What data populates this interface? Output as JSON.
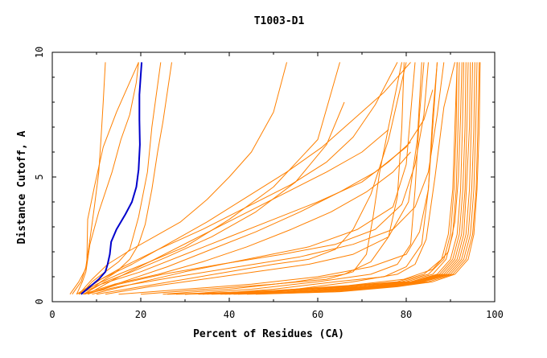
{
  "chart_data": {
    "type": "line",
    "title": "T1003-D1",
    "xlabel": "Percent of Residues (CA)",
    "ylabel": "Distance Cutoff, A",
    "xlim": [
      0,
      100
    ],
    "ylim": [
      0,
      10
    ],
    "xticks": [
      0,
      20,
      40,
      60,
      80,
      100
    ],
    "yticks": [
      0,
      5,
      10
    ],
    "colors": {
      "models": "#ff8000",
      "highlight": "#0000cc",
      "axis": "#000000"
    },
    "highlight": {
      "x": [
        6.5,
        8.5,
        10.5,
        12.0,
        12.5,
        13.0,
        13.3,
        14.5,
        16.5,
        18.0,
        19.0,
        19.5,
        19.8,
        19.7,
        19.7,
        20.0,
        20.2
      ],
      "y": [
        0.3,
        0.6,
        0.9,
        1.2,
        1.5,
        1.9,
        2.4,
        2.9,
        3.5,
        4.0,
        4.6,
        5.3,
        6.3,
        7.3,
        8.3,
        9.1,
        9.6
      ]
    },
    "series": [
      {
        "x": [
          4.0,
          6.0,
          7.5,
          8.5,
          9.5,
          10.5,
          11.0,
          11.5,
          12.0
        ],
        "y": [
          0.3,
          0.8,
          1.3,
          2.5,
          3.8,
          5.2,
          6.5,
          8.0,
          9.6
        ]
      },
      {
        "x": [
          4.5,
          6.5,
          7.8,
          8.0,
          9.5,
          11.5,
          14.5,
          17.0,
          19.5
        ],
        "y": [
          0.3,
          0.8,
          1.5,
          3.3,
          4.6,
          6.2,
          7.6,
          8.6,
          9.6
        ]
      },
      {
        "x": [
          5.5,
          6.8,
          7.6,
          8.5,
          10.5,
          13.5,
          15.5,
          17.5,
          19.0,
          19.5
        ],
        "y": [
          0.3,
          0.8,
          1.2,
          2.3,
          3.6,
          5.2,
          6.5,
          7.5,
          8.8,
          9.6
        ]
      },
      {
        "x": [
          6.5,
          9.0,
          12.0,
          15.0,
          17.5,
          19.5,
          21.5,
          22.5,
          24.5
        ],
        "y": [
          0.3,
          0.8,
          1.2,
          1.6,
          2.1,
          3.4,
          5.2,
          7.0,
          9.6
        ]
      },
      {
        "x": [
          7.5,
          11.0,
          14.5,
          17.5,
          19.5,
          21.0,
          22.5,
          23.8,
          25.0,
          26.0,
          27.0
        ],
        "y": [
          0.3,
          0.8,
          1.2,
          1.7,
          2.3,
          3.1,
          4.5,
          6.0,
          7.2,
          8.4,
          9.6
        ]
      },
      {
        "x": [
          6.0,
          9.0,
          12.5,
          17.0,
          23.0,
          29.0,
          35.0,
          40.0,
          45.0,
          50.0,
          53.0
        ],
        "y": [
          0.3,
          0.9,
          1.5,
          2.0,
          2.6,
          3.2,
          4.1,
          5.0,
          6.0,
          7.6,
          9.6
        ]
      },
      {
        "x": [
          6.0,
          10.0,
          15.0,
          22.0,
          30.0,
          40.0,
          50.0,
          60.0,
          65.0
        ],
        "y": [
          0.3,
          0.7,
          1.1,
          1.6,
          2.2,
          3.3,
          4.6,
          6.5,
          9.6
        ]
      },
      {
        "x": [
          7.0,
          12.0,
          18.0,
          26.0,
          36.0,
          46.0,
          55.0,
          62.0,
          66.0
        ],
        "y": [
          0.3,
          0.8,
          1.2,
          1.8,
          2.6,
          3.6,
          4.8,
          6.3,
          8.0
        ]
      },
      {
        "x": [
          5.5,
          10.0,
          16.0,
          24.0,
          34.0,
          44.0,
          54.0,
          62.0,
          68.0,
          73.0,
          78.0
        ],
        "y": [
          0.3,
          0.8,
          1.4,
          2.1,
          2.9,
          3.8,
          4.7,
          5.6,
          6.6,
          7.9,
          9.6
        ]
      },
      {
        "x": [
          6.0,
          11.0,
          18.0,
          26.0,
          35.0,
          44.0,
          53.0,
          61.0,
          68.0,
          75.0,
          81.0
        ],
        "y": [
          0.3,
          0.9,
          1.5,
          2.3,
          3.2,
          4.2,
          5.2,
          6.2,
          7.3,
          8.4,
          9.6
        ]
      },
      {
        "x": [
          8.0,
          14.0,
          22.0,
          32.0,
          42.0,
          52.0,
          62.0,
          70.0,
          76.0
        ],
        "y": [
          0.3,
          0.9,
          1.6,
          2.5,
          3.4,
          4.3,
          5.2,
          6.0,
          6.9
        ]
      },
      {
        "x": [
          6.0,
          11.0,
          20.0,
          30.0,
          40.0,
          50.0,
          60.0,
          70.0,
          76.0,
          81.0
        ],
        "y": [
          0.3,
          0.7,
          1.2,
          1.9,
          2.6,
          3.3,
          4.0,
          4.8,
          5.6,
          6.4
        ]
      },
      {
        "x": [
          7.0,
          14.0,
          24.0,
          34.0,
          44.0,
          54.0,
          63.0,
          71.0,
          77.0,
          81.0
        ],
        "y": [
          0.3,
          0.7,
          1.1,
          1.6,
          2.2,
          2.9,
          3.6,
          4.4,
          5.2,
          6.0
        ]
      },
      {
        "x": [
          8.0,
          16.0,
          26.0,
          36.0,
          46.0,
          56.0,
          65.0,
          73.0,
          80.0,
          84.0,
          86.0
        ],
        "y": [
          0.3,
          0.8,
          1.4,
          2.1,
          2.8,
          3.6,
          4.4,
          5.2,
          6.2,
          7.3,
          8.5
        ]
      },
      {
        "x": [
          10.0,
          20.0,
          30.0,
          40.0,
          50.0,
          58.0,
          64.0,
          68.0,
          72.0,
          76.0,
          80.0
        ],
        "y": [
          0.3,
          0.6,
          0.9,
          1.2,
          1.5,
          1.7,
          2.1,
          2.9,
          4.3,
          6.5,
          9.6
        ]
      },
      {
        "x": [
          20.0,
          35.0,
          50.0,
          62.0,
          68.0,
          71.0,
          72.5,
          74.0,
          76.0,
          79.0
        ],
        "y": [
          0.3,
          0.5,
          0.7,
          0.9,
          1.2,
          1.9,
          3.4,
          5.2,
          7.0,
          9.6
        ]
      },
      {
        "x": [
          25.0,
          40.0,
          55.0,
          66.0,
          72.0,
          76.0,
          78.0,
          79.0,
          79.5
        ],
        "y": [
          0.3,
          0.5,
          0.8,
          1.1,
          1.6,
          2.6,
          4.2,
          7.0,
          9.6
        ]
      },
      {
        "x": [
          30.0,
          45.0,
          60.0,
          72.0,
          78.0,
          81.0,
          82.0,
          83.0,
          84.0
        ],
        "y": [
          0.3,
          0.5,
          0.8,
          1.1,
          1.5,
          2.3,
          4.5,
          7.5,
          9.6
        ]
      },
      {
        "x": [
          35.0,
          50.0,
          64.0,
          75.0,
          80.0,
          83.5,
          85.0,
          86.0,
          87.0
        ],
        "y": [
          0.3,
          0.5,
          0.8,
          1.0,
          1.4,
          2.3,
          4.5,
          7.5,
          9.6
        ]
      },
      {
        "x": [
          40.0,
          55.0,
          68.0,
          78.0,
          82.0,
          84.5,
          86.5,
          88.5,
          91.0
        ],
        "y": [
          0.3,
          0.5,
          0.8,
          1.1,
          1.5,
          2.5,
          5.0,
          7.8,
          9.6
        ]
      },
      {
        "x": [
          8.0,
          15.0,
          25.0,
          38.0,
          52.0,
          64.0,
          73.0,
          79.0,
          82.0,
          84.0,
          85.0
        ],
        "y": [
          0.3,
          0.7,
          1.1,
          1.5,
          1.9,
          2.3,
          2.9,
          3.9,
          5.5,
          7.5,
          9.6
        ]
      },
      {
        "x": [
          12.0,
          22.0,
          34.0,
          46.0,
          58.0,
          68.0,
          76.0,
          80.5,
          82.5,
          83.5
        ],
        "y": [
          0.3,
          0.6,
          0.9,
          1.2,
          1.5,
          1.9,
          2.6,
          4.0,
          6.5,
          9.6
        ]
      },
      {
        "x": [
          7.0,
          15.0,
          28.0,
          42.0,
          56.0,
          68.0,
          77.0,
          82.0,
          85.0,
          87.0,
          88.5
        ],
        "y": [
          0.3,
          0.6,
          1.0,
          1.4,
          1.8,
          2.3,
          2.9,
          3.8,
          5.2,
          7.5,
          9.6
        ]
      },
      {
        "x": [
          9.0,
          18.0,
          30.0,
          44.0,
          58.0,
          69.0,
          77.0,
          80.0,
          82.0
        ],
        "y": [
          0.3,
          0.7,
          1.2,
          1.7,
          2.2,
          2.9,
          3.8,
          5.5,
          9.6
        ]
      },
      {
        "x": [
          15.0,
          30.0,
          45.0,
          60.0,
          72.0,
          80.0,
          83.0,
          85.0,
          86.0,
          87.0
        ],
        "y": [
          0.3,
          0.5,
          0.7,
          1.0,
          1.4,
          1.9,
          2.8,
          4.5,
          7.0,
          9.6
        ]
      },
      {
        "x": [
          30.0,
          50.0,
          68.0,
          80.0,
          86.0,
          89.0,
          90.5,
          91.3,
          91.7,
          92.0
        ],
        "y": [
          0.3,
          0.4,
          0.6,
          0.8,
          1.1,
          1.7,
          2.7,
          4.5,
          7.0,
          9.6
        ]
      },
      {
        "x": [
          33.0,
          53.0,
          70.0,
          81.0,
          87.0,
          90.0,
          91.5,
          92.3,
          92.7,
          93.0
        ],
        "y": [
          0.3,
          0.4,
          0.6,
          0.8,
          1.1,
          1.7,
          2.7,
          4.5,
          7.0,
          9.6
        ]
      },
      {
        "x": [
          36.0,
          56.0,
          72.0,
          82.0,
          88.0,
          91.0,
          92.5,
          93.3,
          93.7,
          94.0
        ],
        "y": [
          0.3,
          0.4,
          0.6,
          0.8,
          1.1,
          1.7,
          2.7,
          4.5,
          7.0,
          9.6
        ]
      },
      {
        "x": [
          39.0,
          59.0,
          74.0,
          83.0,
          89.0,
          92.0,
          93.5,
          94.3,
          94.7,
          95.0
        ],
        "y": [
          0.3,
          0.4,
          0.6,
          0.8,
          1.1,
          1.7,
          2.7,
          4.5,
          7.0,
          9.6
        ]
      },
      {
        "x": [
          42.0,
          62.0,
          76.0,
          84.0,
          90.0,
          93.0,
          94.5,
          95.3,
          95.7,
          96.0
        ],
        "y": [
          0.3,
          0.4,
          0.6,
          0.8,
          1.1,
          1.7,
          2.7,
          4.5,
          7.0,
          9.6
        ]
      },
      {
        "x": [
          44.0,
          64.0,
          77.0,
          85.0,
          90.5,
          93.5,
          95.0,
          95.8,
          96.2,
          96.5
        ],
        "y": [
          0.3,
          0.4,
          0.6,
          0.8,
          1.1,
          1.7,
          2.7,
          4.5,
          7.0,
          9.6
        ]
      },
      {
        "x": [
          28.0,
          48.0,
          66.0,
          79.0,
          85.0,
          88.5,
          90.0,
          90.8,
          91.3,
          91.5
        ],
        "y": [
          0.3,
          0.4,
          0.6,
          0.8,
          1.1,
          1.7,
          2.7,
          4.5,
          7.0,
          9.6
        ]
      },
      {
        "x": [
          38.0,
          57.0,
          73.0,
          82.5,
          88.5,
          91.5,
          93.0,
          93.6,
          94.3,
          94.5
        ],
        "y": [
          0.3,
          0.4,
          0.6,
          0.8,
          1.1,
          1.7,
          2.7,
          4.5,
          7.0,
          9.6
        ]
      },
      {
        "x": [
          46.0,
          65.0,
          78.0,
          86.0,
          91.0,
          94.0,
          95.3,
          96.0,
          96.5,
          96.7
        ],
        "y": [
          0.3,
          0.4,
          0.6,
          0.8,
          1.1,
          1.7,
          2.7,
          4.5,
          7.0,
          9.6
        ]
      },
      {
        "x": [
          26.0,
          46.0,
          64.0,
          78.0,
          84.0,
          88.0,
          89.5,
          90.5,
          91.0,
          91.5
        ],
        "y": [
          0.3,
          0.4,
          0.6,
          0.8,
          1.1,
          1.7,
          2.7,
          4.5,
          7.0,
          9.6
        ]
      },
      {
        "x": [
          34.0,
          54.0,
          71.0,
          81.5,
          87.5,
          90.5,
          92.0,
          92.8,
          93.3,
          93.5
        ],
        "y": [
          0.3,
          0.4,
          0.6,
          0.8,
          1.1,
          1.7,
          2.7,
          4.5,
          7.0,
          9.6
        ]
      },
      {
        "x": [
          41.0,
          61.0,
          75.0,
          83.5,
          89.5,
          92.5,
          94.0,
          94.8,
          95.3,
          95.5
        ],
        "y": [
          0.3,
          0.4,
          0.6,
          0.8,
          1.1,
          1.7,
          2.7,
          4.5,
          7.0,
          9.6
        ]
      },
      {
        "x": [
          30.0,
          50.0,
          67.0,
          79.5,
          86.0,
          89.5,
          91.0,
          91.8,
          92.3,
          92.6
        ],
        "y": [
          0.3,
          0.45,
          0.65,
          0.9,
          1.3,
          2.0,
          3.2,
          5.0,
          7.5,
          9.6
        ]
      }
    ]
  }
}
